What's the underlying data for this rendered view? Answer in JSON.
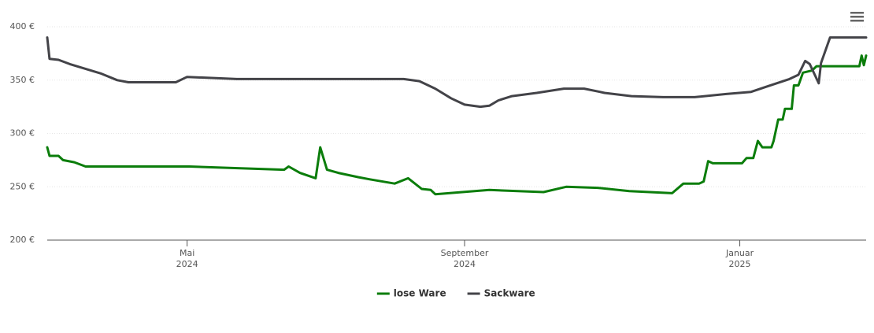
{
  "chart_data": {
    "type": "line",
    "xlim": [
      "2024-02-29",
      "2025-02-26"
    ],
    "xticks": [
      {
        "value": "2024-05-01",
        "label": "Mai 2024"
      },
      {
        "value": "2024-09-01",
        "label": "September 2024"
      },
      {
        "value": "2025-01-01",
        "label": "Januar 2025"
      }
    ],
    "ylim": [
      200,
      400
    ],
    "yticks": [
      {
        "value": 200,
        "label": "200 €"
      },
      {
        "value": 250,
        "label": "250 €"
      },
      {
        "value": 300,
        "label": "300 €"
      },
      {
        "value": 350,
        "label": "350 €"
      },
      {
        "value": 400,
        "label": "400 €"
      }
    ],
    "grid": true,
    "legend": "bottom",
    "series": [
      {
        "name": "lose Ware",
        "color": "#0b7d0b",
        "x": [
          "2024-02-29",
          "2024-03-01",
          "2024-03-05",
          "2024-03-07",
          "2024-03-12",
          "2024-03-17",
          "2024-05-02",
          "2024-06-13",
          "2024-06-15",
          "2024-06-20",
          "2024-06-27",
          "2024-06-29",
          "2024-07-02",
          "2024-07-07",
          "2024-07-16",
          "2024-07-21",
          "2024-08-01",
          "2024-08-07",
          "2024-08-13",
          "2024-08-17",
          "2024-08-19",
          "2024-08-25",
          "2024-09-12",
          "2024-10-06",
          "2024-10-16",
          "2024-10-30",
          "2024-11-13",
          "2024-12-02",
          "2024-12-07",
          "2024-12-14",
          "2024-12-16",
          "2024-12-18",
          "2024-12-20",
          "2025-01-02",
          "2025-01-04",
          "2025-01-07",
          "2025-01-09",
          "2025-01-11",
          "2025-01-15",
          "2025-01-16",
          "2025-01-18",
          "2025-01-20",
          "2025-01-21",
          "2025-01-24",
          "2025-01-25",
          "2025-01-27",
          "2025-01-29",
          "2025-02-02",
          "2025-02-04",
          "2025-02-23",
          "2025-02-24",
          "2025-02-25",
          "2025-02-26"
        ],
        "values": [
          287,
          279,
          279,
          275,
          273,
          269,
          269,
          266,
          269,
          263,
          258,
          287,
          266,
          263,
          259,
          257,
          253,
          258,
          248,
          247,
          243,
          244,
          247,
          245,
          250,
          249,
          246,
          244,
          253,
          253,
          255,
          274,
          272,
          272,
          277,
          277,
          293,
          287,
          287,
          293,
          313,
          313,
          323,
          323,
          345,
          345,
          357,
          359,
          363,
          363,
          373,
          364,
          373
        ]
      },
      {
        "name": "Sackware",
        "color": "#434348",
        "x": [
          "2024-02-29",
          "2024-03-01",
          "2024-03-05",
          "2024-03-10",
          "2024-03-24",
          "2024-03-31",
          "2024-04-05",
          "2024-04-26",
          "2024-05-01",
          "2024-05-23",
          "2024-08-05",
          "2024-08-12",
          "2024-08-19",
          "2024-08-26",
          "2024-09-01",
          "2024-09-08",
          "2024-09-12",
          "2024-09-16",
          "2024-09-22",
          "2024-10-03",
          "2024-10-15",
          "2024-10-24",
          "2024-10-31",
          "2024-11-02",
          "2024-11-14",
          "2024-11-28",
          "2024-12-12",
          "2024-12-26",
          "2025-01-06",
          "2025-01-13",
          "2025-01-23",
          "2025-01-27",
          "2025-01-30",
          "2025-02-01",
          "2025-02-05",
          "2025-02-06",
          "2025-02-10",
          "2025-02-26"
        ],
        "values": [
          390,
          370,
          369,
          365,
          356,
          350,
          348,
          348,
          353,
          351,
          351,
          349,
          342,
          333,
          327,
          325,
          326,
          331,
          335,
          338,
          342,
          342,
          339,
          338,
          335,
          334,
          334,
          337,
          339,
          344,
          351,
          355,
          368,
          365,
          347,
          366,
          390,
          390
        ]
      }
    ]
  }
}
